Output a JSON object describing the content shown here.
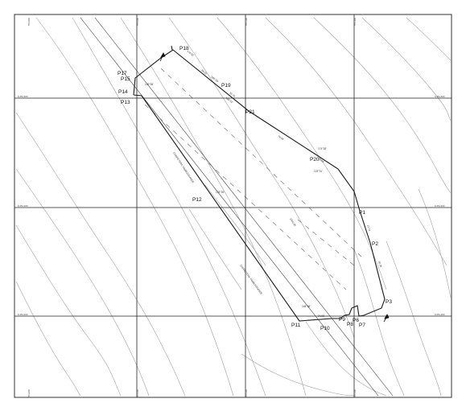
{
  "points": [
    {
      "id": "P1",
      "label": "P1"
    },
    {
      "id": "P2",
      "label": "P2"
    },
    {
      "id": "P3",
      "label": "P3"
    },
    {
      "id": "P6",
      "label": "P6"
    },
    {
      "id": "P7",
      "label": "P7"
    },
    {
      "id": "P8",
      "label": "P8"
    },
    {
      "id": "P9",
      "label": "P9"
    },
    {
      "id": "P10",
      "label": "P10"
    },
    {
      "id": "P11",
      "label": "P11"
    },
    {
      "id": "P12",
      "label": "P12"
    },
    {
      "id": "P13",
      "label": "P13"
    },
    {
      "id": "P14",
      "label": "P14"
    },
    {
      "id": "P15",
      "label": "P15"
    },
    {
      "id": "P17",
      "label": "P17"
    },
    {
      "id": "P18",
      "label": "P18"
    },
    {
      "id": "P19",
      "label": "P19"
    },
    {
      "id": "P20",
      "label": "P20"
    },
    {
      "id": "P21",
      "label": "P21"
    }
  ],
  "colors": {
    "border": "#333333",
    "grid": "#222222",
    "boundary": "#1a1a1a",
    "contour": "#9a9a9a",
    "dash": "#666666"
  }
}
